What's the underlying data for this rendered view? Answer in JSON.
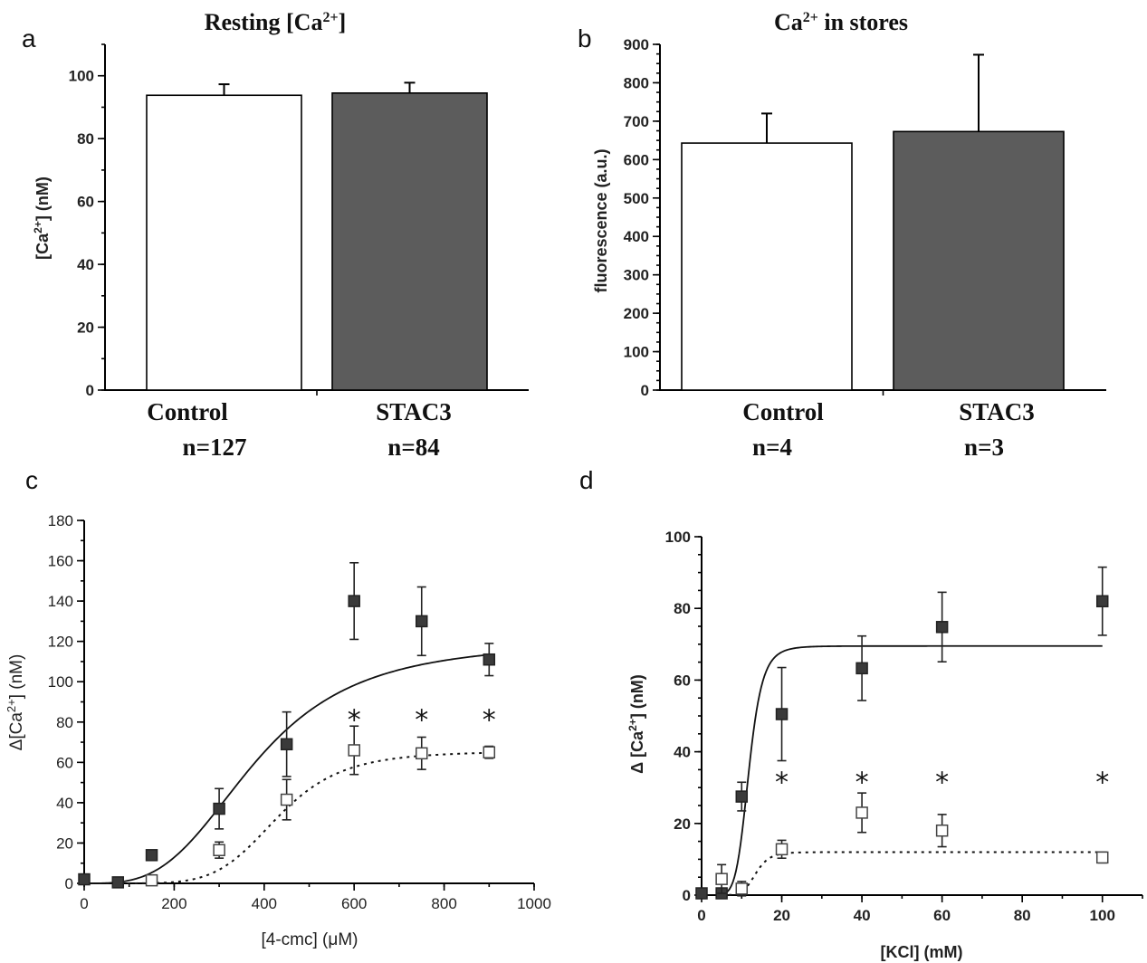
{
  "chart_data": [
    {
      "panel": "a",
      "type": "bar",
      "title": "Resting [Ca",
      "title_sup": "2+",
      "title_end": "]",
      "ylabel": "[Ca",
      "ylabel_sup": "2+",
      "ylabel_end": "] (nM)",
      "ylim": [
        0,
        110
      ],
      "yticks": [
        0,
        20,
        40,
        60,
        80,
        100
      ],
      "categories": [
        "Control",
        "STAC3"
      ],
      "n_labels": [
        "n=127",
        "n=84"
      ],
      "values": [
        93.8,
        94.5
      ],
      "errors": [
        3.5,
        3.3
      ],
      "colors": [
        "#ffffff",
        "#5c5c5c"
      ]
    },
    {
      "panel": "b",
      "type": "bar",
      "title": "Ca",
      "title_sup": "2+",
      "title_end": "  in stores",
      "ylabel": "fluorescence (a.u.)",
      "ylim": [
        0,
        900
      ],
      "yticks": [
        0,
        100,
        200,
        300,
        400,
        500,
        600,
        700,
        800,
        900
      ],
      "categories": [
        "Control",
        "STAC3"
      ],
      "n_labels": [
        "n=4",
        "n=3"
      ],
      "values": [
        643,
        673
      ],
      "errors": [
        77,
        200
      ],
      "colors": [
        "#ffffff",
        "#5c5c5c"
      ]
    },
    {
      "panel": "c",
      "type": "scatter",
      "xlabel": "[4-cmc] (μM)",
      "ylabel": "Δ[Ca",
      "ylabel_sup": "2+",
      "ylabel_end": "]  (nM)",
      "xlim": [
        0,
        1000
      ],
      "ylim": [
        0,
        180
      ],
      "xticks": [
        0,
        200,
        400,
        600,
        800,
        1000
      ],
      "yticks": [
        0,
        20,
        40,
        60,
        80,
        100,
        120,
        140,
        160,
        180
      ],
      "series": [
        {
          "marker": "filled-square",
          "x": [
            0,
            75,
            150,
            300,
            450,
            600,
            750,
            900
          ],
          "y": [
            2,
            0.5,
            14,
            37,
            69,
            140,
            130,
            111
          ],
          "err": [
            0,
            0,
            0,
            10,
            16,
            19,
            17,
            8
          ],
          "fit": {
            "style": "solid",
            "bottom": 0,
            "top": 120,
            "ec50": 380,
            "hill": 3.3
          }
        },
        {
          "marker": "open-square",
          "x": [
            150,
            300,
            450,
            600,
            750,
            900
          ],
          "y": [
            1.5,
            16.5,
            41.5,
            66,
            64.5,
            65
          ],
          "err": [
            1,
            4,
            10,
            12,
            8,
            3
          ],
          "fit": {
            "style": "dotted",
            "bottom": 0,
            "top": 65.5,
            "ec50": 430,
            "hill": 6
          }
        }
      ],
      "significance": {
        "symbol": "*",
        "x": [
          600,
          750,
          900
        ],
        "y": 82
      }
    },
    {
      "panel": "d",
      "type": "scatter",
      "xlabel": "[KCl] (mM)",
      "ylabel": "Δ [Ca",
      "ylabel_sup": "2+",
      "ylabel_end": "] (nM)",
      "xlim": [
        0,
        110
      ],
      "ylim": [
        0,
        100
      ],
      "xticks": [
        0,
        20,
        40,
        60,
        80,
        100
      ],
      "yticks": [
        0,
        20,
        40,
        60,
        80,
        100
      ],
      "series": [
        {
          "marker": "filled-square",
          "x": [
            0,
            5,
            10,
            20,
            40,
            60,
            100
          ],
          "y": [
            0.5,
            0.5,
            27.5,
            50.5,
            63.3,
            74.8,
            82
          ],
          "err": [
            0,
            0,
            4,
            13,
            9,
            9.7,
            9.5
          ],
          "fit": {
            "style": "solid",
            "bottom": 0,
            "top": 69.5,
            "ec50": 11.8,
            "hill": 7,
            "xmin": 5,
            "xmax": 100
          }
        },
        {
          "marker": "open-square",
          "x": [
            5,
            10,
            20,
            40,
            60,
            100
          ],
          "y": [
            4.5,
            1.8,
            12.8,
            23,
            18,
            10.5
          ],
          "err": [
            4,
            2,
            2.5,
            5.5,
            4.5,
            1.5
          ],
          "fit": {
            "style": "dotted",
            "bottom": 0,
            "top": 12,
            "ec50": 13.5,
            "hill": 8,
            "xmin": 5,
            "xmax": 100
          }
        }
      ],
      "significance": {
        "symbol": "*",
        "x": [
          20,
          40,
          60,
          100
        ],
        "y": 32
      }
    }
  ]
}
